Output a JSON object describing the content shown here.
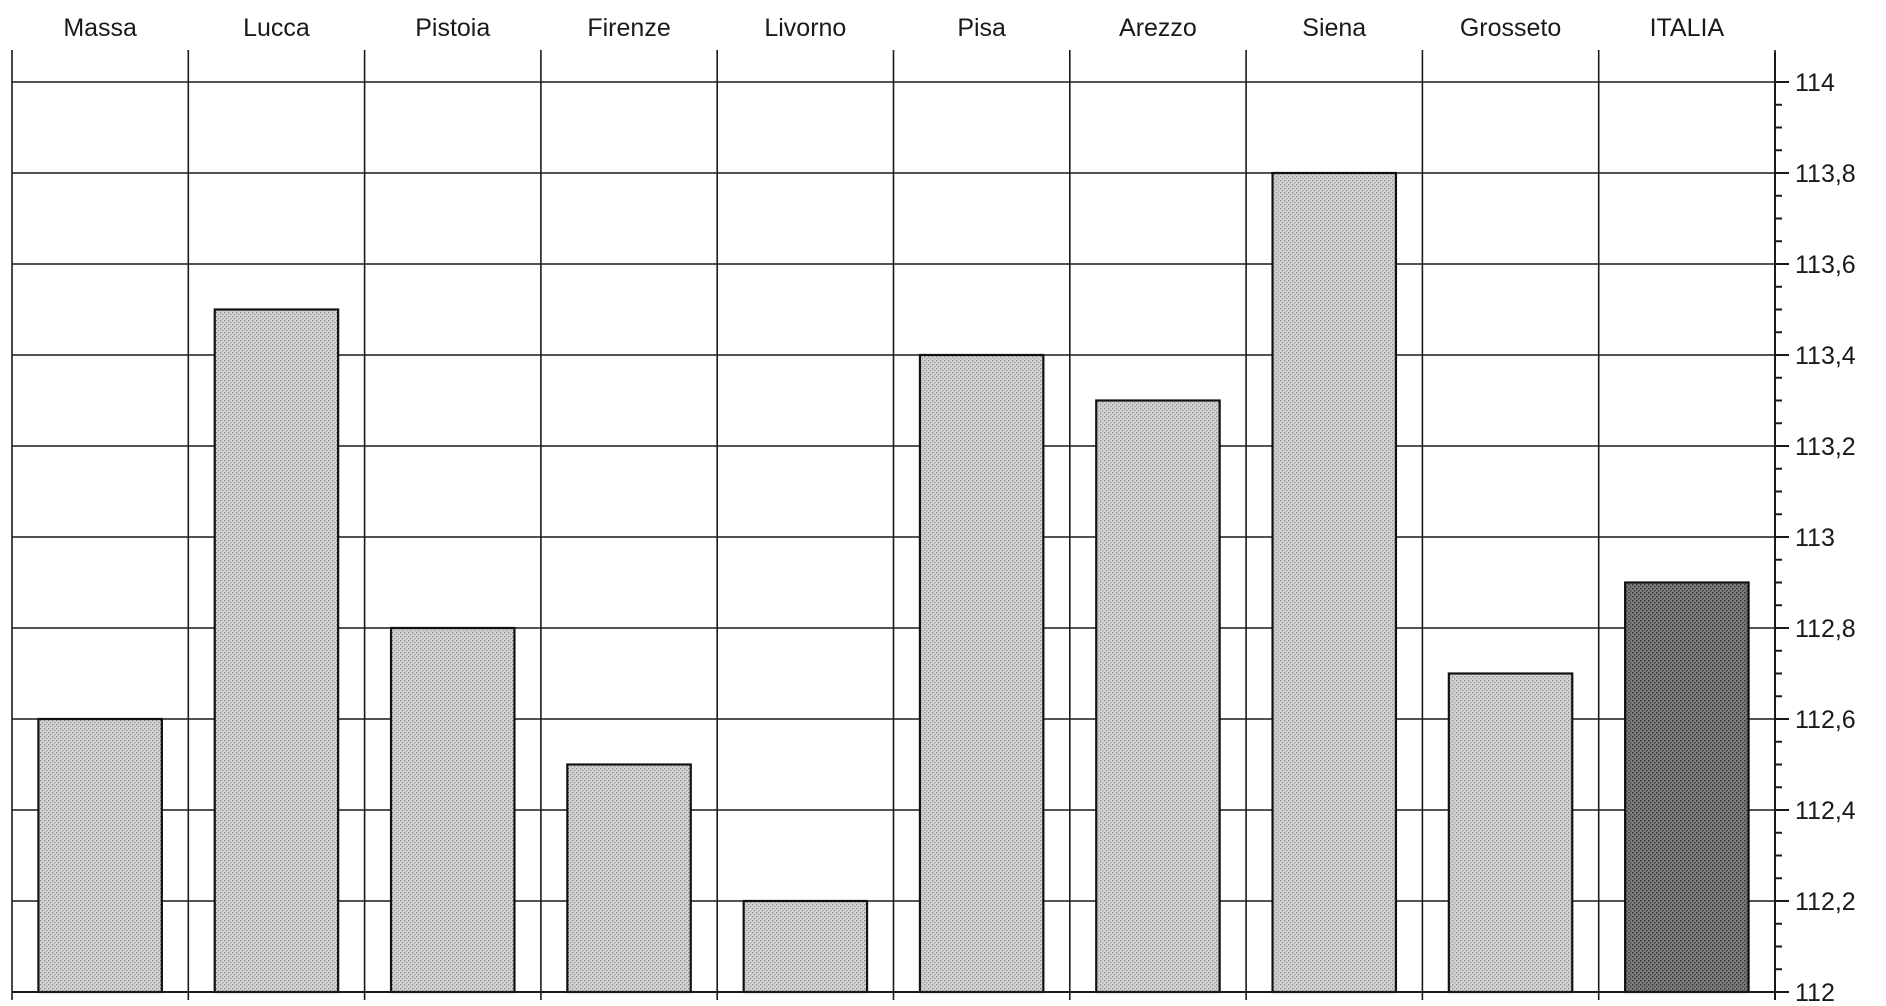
{
  "chart_data": {
    "type": "bar",
    "title": "",
    "xlabel": "",
    "ylabel": "",
    "categories": [
      "Massa",
      "Lucca",
      "Pistoia",
      "Firenze",
      "Livorno",
      "Pisa",
      "Arezzo",
      "Siena",
      "Grosseto",
      "ITALIA"
    ],
    "values": [
      112.6,
      113.5,
      112.8,
      112.5,
      112.2,
      113.4,
      113.3,
      113.8,
      112.7,
      112.9
    ],
    "ylim": [
      112,
      114
    ],
    "yticks": [
      "112",
      "112,2",
      "112,4",
      "112,6",
      "112,8",
      "113",
      "113,2",
      "113,4",
      "113,6",
      "113,8",
      "114"
    ],
    "category_axis_position": "top",
    "value_axis_position": "right",
    "grid": true,
    "colors": {
      "bar_fill": "#c4c4c4",
      "highlight_fill": "#6e6e6e",
      "highlight_category": "ITALIA",
      "line": "#1a1a1a"
    }
  }
}
